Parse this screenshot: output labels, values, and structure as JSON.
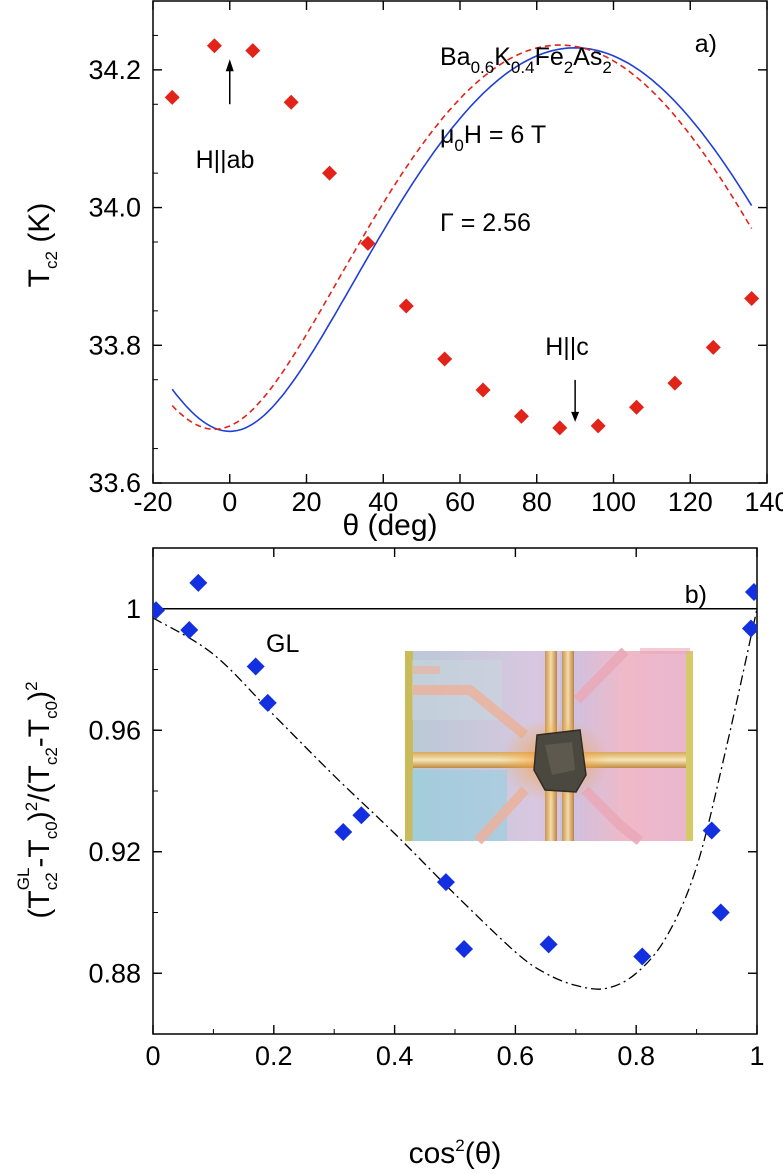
{
  "chart_data": [
    {
      "panel": "a",
      "type": "scatter",
      "xlabel": "θ (deg)",
      "ylabel_main": "T",
      "ylabel_sub": "c2",
      "ylabel_unit": " (K)",
      "xlim": [
        -20,
        140
      ],
      "ylim": [
        33.6,
        34.3
      ],
      "xticks": [
        -20,
        0,
        20,
        40,
        60,
        80,
        100,
        120,
        140
      ],
      "yticks": [
        33.6,
        33.8,
        34.0,
        34.2
      ],
      "ytick_labels": [
        "33.6",
        "33.8",
        "34.0",
        "34.2"
      ],
      "panel_label": "a)",
      "formula": [
        "Ba",
        "0.6",
        "K",
        "0.4",
        "Fe",
        "2",
        "As",
        "2"
      ],
      "field_label": [
        "μ",
        "0",
        "H = 6 T"
      ],
      "gamma_label": "Γ = 2.56",
      "arrow_labels": {
        "ab": "H||ab",
        "c": "H||c"
      },
      "arrow_targets": [
        {
          "x": 0,
          "y": 34.23
        },
        {
          "x": 90,
          "y": 33.68
        }
      ],
      "colors": {
        "points": "#e2231a",
        "fit_solid": "#1f3fd6",
        "fit_dashed": "#e2231a"
      },
      "series": [
        {
          "marker": "diamond",
          "x": [
            -15,
            -4,
            6,
            16,
            26,
            36,
            46,
            56,
            66,
            76,
            86,
            96,
            106,
            116,
            126,
            136
          ],
          "y": [
            34.16,
            34.235,
            34.228,
            34.153,
            34.05,
            33.948,
            33.857,
            33.78,
            33.735,
            33.697,
            33.68,
            33.683,
            33.71,
            33.745,
            33.797,
            33.868
          ]
        }
      ],
      "fits": [
        {
          "style": "solid",
          "gamma": 2.56,
          "tc_ab": 34.232,
          "tc_c": 33.675,
          "xrange": [
            -15,
            136
          ],
          "shift": 0
        },
        {
          "style": "dashed",
          "gamma": 2.56,
          "tc_ab": 34.236,
          "tc_c": 33.678,
          "xrange": [
            -15,
            136
          ],
          "shift": -4
        }
      ]
    },
    {
      "panel": "b",
      "type": "scatter",
      "xlabel": "cos",
      "xlabel_sup": "2",
      "xlabel_tail": "(θ)",
      "xlim": [
        0,
        1
      ],
      "ylim": [
        0.86,
        1.02
      ],
      "xticks": [
        0,
        0.2,
        0.4,
        0.6,
        0.8,
        1
      ],
      "xtick_labels": [
        "0",
        "0.2",
        "0.4",
        "0.6",
        "0.8",
        "1"
      ],
      "yticks": [
        0.88,
        0.92,
        0.96,
        1
      ],
      "ytick_labels": [
        "0.88",
        "0.92",
        "0.96",
        "1"
      ],
      "panel_label": "b)",
      "gl_label": "GL",
      "gl_value": 1,
      "ylabel_parts": [
        "(T",
        "c2",
        "GL",
        "-T",
        "c0",
        ")",
        "2",
        "/(T",
        "c2",
        "-T",
        "c0",
        ")",
        "2"
      ],
      "colors": {
        "points": "#1230e0",
        "fit": "#000000"
      },
      "series": [
        {
          "marker": "diamond",
          "x": [
            0.005,
            0.06,
            0.075,
            0.17,
            0.19,
            0.315,
            0.345,
            0.485,
            0.515,
            0.655,
            0.81,
            0.925,
            0.94,
            0.99,
            0.995
          ],
          "y": [
            0.9995,
            0.993,
            1.0085,
            0.981,
            0.969,
            0.9265,
            0.932,
            0.91,
            0.888,
            0.8895,
            0.8855,
            0.927,
            0.9,
            0.9935,
            1.0055
          ]
        }
      ],
      "fit": {
        "style": "dashdot",
        "x": [
          0,
          0.1,
          0.2,
          0.3,
          0.4,
          0.5,
          0.6,
          0.65,
          0.7,
          0.75,
          0.8,
          0.85,
          0.9,
          0.95,
          1
        ],
        "y": [
          0.997,
          0.985,
          0.965,
          0.945,
          0.926,
          0.906,
          0.887,
          0.88,
          0.876,
          0.875,
          0.88,
          0.892,
          0.915,
          0.955,
          1
        ]
      },
      "inset_photo": "sample-micrograph"
    }
  ]
}
